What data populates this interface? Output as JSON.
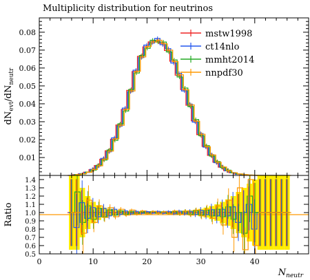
{
  "chart_data": {
    "type": "line",
    "title": "Multiplicity distribution for neutrinos",
    "xlabel": "N_neutr",
    "ylabel_main": "dN_evt/dN_neutr",
    "ylabel_ratio": "Ratio",
    "xlim": [
      0,
      50
    ],
    "ylim_main": [
      0,
      0.088
    ],
    "ylim_ratio": [
      0.5,
      1.45
    ],
    "xticks": [
      "0",
      "10",
      "20",
      "30",
      "40"
    ],
    "yticks_main": [
      "0.01",
      "0.02",
      "0.03",
      "0.04",
      "0.05",
      "0.06",
      "0.07",
      "0.08"
    ],
    "yticks_ratio": [
      "0.5",
      "0.6",
      "0.7",
      "0.8",
      "0.9",
      "1.0",
      "1.1",
      "1.2",
      "1.3",
      "1.4"
    ],
    "legend_position": "top-right",
    "x": [
      6,
      7,
      8,
      9,
      10,
      11,
      12,
      13,
      14,
      15,
      16,
      17,
      18,
      19,
      20,
      21,
      22,
      23,
      24,
      25,
      26,
      27,
      28,
      29,
      30,
      31,
      32,
      33,
      34,
      35,
      36,
      37,
      38,
      39,
      40,
      41,
      42,
      43,
      44,
      45,
      46
    ],
    "series": [
      {
        "name": "mstw1998",
        "color": "#ee2222",
        "values": [
          0.0,
          0.0004,
          0.0009,
          0.0018,
          0.0032,
          0.0055,
          0.009,
          0.0138,
          0.0202,
          0.0282,
          0.0368,
          0.0475,
          0.058,
          0.0665,
          0.0718,
          0.0746,
          0.0752,
          0.0738,
          0.0698,
          0.0638,
          0.056,
          0.048,
          0.0392,
          0.0305,
          0.0228,
          0.0162,
          0.0112,
          0.0074,
          0.0046,
          0.0027,
          0.0015,
          0.0008,
          0.0004,
          0.0002,
          0.0001,
          0.0,
          0.0,
          0.0,
          0.0,
          0.0,
          0.0
        ],
        "ratio": [
          1.0,
          1.0,
          1.0,
          1.0,
          1.0,
          1.0,
          1.0,
          1.0,
          1.0,
          1.0,
          1.0,
          1.0,
          1.0,
          1.0,
          1.0,
          1.0,
          1.0,
          1.0,
          1.0,
          1.0,
          1.0,
          1.0,
          1.0,
          1.0,
          1.0,
          1.0,
          1.0,
          1.0,
          1.0,
          1.0,
          1.0,
          1.0,
          1.0,
          1.0,
          1.0,
          1.0,
          1.0,
          1.0,
          1.0,
          1.0,
          1.0
        ]
      },
      {
        "name": "ct14nlo",
        "color": "#2255ee",
        "values": [
          0.0,
          0.0003,
          0.001,
          0.0017,
          0.0034,
          0.0052,
          0.0095,
          0.0132,
          0.021,
          0.0276,
          0.0376,
          0.0468,
          0.0588,
          0.0658,
          0.0728,
          0.074,
          0.0765,
          0.073,
          0.0708,
          0.0628,
          0.057,
          0.0472,
          0.0398,
          0.0298,
          0.0234,
          0.0158,
          0.0116,
          0.0071,
          0.0048,
          0.0026,
          0.0016,
          0.0007,
          0.0004,
          0.0002,
          0.0001,
          0.0,
          0.0,
          0.0,
          0.0,
          0.0,
          0.0
        ],
        "ratio": [
          1.0,
          0.82,
          1.12,
          0.93,
          1.06,
          0.95,
          1.05,
          0.96,
          1.04,
          0.98,
          1.02,
          0.985,
          1.015,
          0.99,
          1.012,
          0.992,
          1.015,
          0.99,
          1.014,
          0.985,
          1.018,
          0.985,
          1.015,
          0.977,
          1.026,
          0.975,
          1.035,
          0.96,
          1.04,
          0.96,
          1.07,
          0.88,
          1.0,
          1.1,
          0.8,
          1.0,
          1.0,
          1.0,
          1.0,
          1.0,
          1.0
        ]
      },
      {
        "name": "mmht2014",
        "color": "#22aa22",
        "values": [
          0.0,
          0.0005,
          0.0008,
          0.0019,
          0.003,
          0.0057,
          0.0086,
          0.0142,
          0.0196,
          0.0288,
          0.036,
          0.048,
          0.0572,
          0.067,
          0.071,
          0.0755,
          0.0745,
          0.0745,
          0.069,
          0.0645,
          0.055,
          0.0488,
          0.0385,
          0.0312,
          0.0222,
          0.0166,
          0.0108,
          0.0077,
          0.0044,
          0.0029,
          0.0014,
          0.0008,
          0.0004,
          0.0002,
          0.0001,
          0.0,
          0.0,
          0.0,
          0.0,
          0.0,
          0.0
        ],
        "ratio": [
          1.0,
          1.25,
          0.88,
          1.08,
          0.92,
          1.05,
          0.95,
          1.03,
          0.97,
          1.02,
          0.98,
          1.01,
          0.985,
          1.008,
          0.99,
          1.012,
          0.99,
          1.01,
          0.988,
          1.012,
          0.982,
          1.016,
          0.978,
          1.023,
          0.97,
          1.025,
          0.96,
          1.04,
          0.95,
          1.07,
          0.92,
          1.0,
          0.75,
          1.2,
          1.0,
          1.0,
          1.0,
          1.0,
          1.0,
          1.0,
          1.0
        ]
      },
      {
        "name": "nnpdf30",
        "color": "#ff9900",
        "values": [
          0.0,
          0.0004,
          0.0009,
          0.0018,
          0.0033,
          0.0054,
          0.0091,
          0.0136,
          0.0205,
          0.028,
          0.037,
          0.0472,
          0.0582,
          0.0662,
          0.072,
          0.0745,
          0.0755,
          0.0735,
          0.07,
          0.0636,
          0.0562,
          0.0478,
          0.0394,
          0.0302,
          0.023,
          0.016,
          0.0114,
          0.0073,
          0.0047,
          0.0026,
          0.0015,
          0.0008,
          0.0004,
          0.0002,
          0.0001,
          0.0,
          0.0,
          0.0,
          0.0,
          0.0,
          0.0
        ],
        "ratio": [
          1.0,
          1.0,
          0.75,
          1.15,
          0.88,
          1.08,
          0.94,
          1.06,
          0.95,
          1.04,
          0.97,
          1.03,
          0.98,
          1.02,
          0.985,
          1.015,
          0.99,
          1.01,
          0.985,
          1.02,
          0.98,
          1.02,
          0.97,
          1.03,
          0.96,
          1.04,
          0.93,
          1.08,
          0.85,
          1.15,
          0.7,
          1.3,
          0.55,
          1.4,
          0.6,
          1.0,
          1.0,
          1.0,
          1.0,
          1.0,
          1.0
        ]
      }
    ],
    "uncertainty_band": {
      "color": "#ffee00",
      "halfwidth": [
        0.45,
        0.45,
        0.3,
        0.2,
        0.13,
        0.09,
        0.06,
        0.045,
        0.035,
        0.03,
        0.025,
        0.02,
        0.018,
        0.016,
        0.015,
        0.014,
        0.014,
        0.015,
        0.016,
        0.018,
        0.02,
        0.024,
        0.028,
        0.034,
        0.045,
        0.06,
        0.08,
        0.1,
        0.13,
        0.16,
        0.2,
        0.25,
        0.3,
        0.35,
        0.4,
        0.45,
        0.45,
        0.45,
        0.45,
        0.45,
        0.45
      ]
    }
  }
}
